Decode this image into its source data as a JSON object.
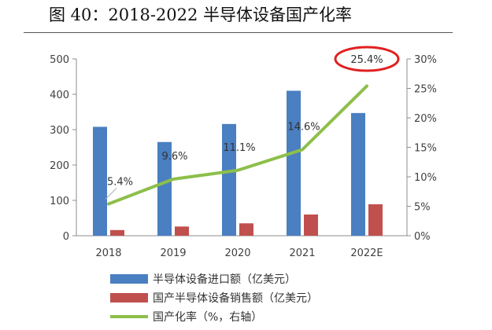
{
  "title": "图 40：2018-2022 半导体设备国产化率",
  "colors": {
    "import_bar": "#4a7fc1",
    "domestic_bar": "#c0504d",
    "rate_line": "#8dbf4a",
    "highlight_circle": "#e02020",
    "axis": "#8c8c8c"
  },
  "chart_data": {
    "type": "bar",
    "categories": [
      "2018",
      "2019",
      "2020",
      "2021",
      "2022E"
    ],
    "series": [
      {
        "name": "半导体设备进口额（亿美元）",
        "type": "bar",
        "axis": "left",
        "values": [
          308,
          265,
          316,
          410,
          347
        ]
      },
      {
        "name": "国产半导体设备销售额（亿美元）",
        "type": "bar",
        "axis": "left",
        "values": [
          16,
          26,
          35,
          60,
          89
        ]
      },
      {
        "name": "国产化率（%，右轴）",
        "type": "line",
        "axis": "right",
        "values": [
          5.4,
          9.6,
          11.1,
          14.6,
          25.4
        ]
      }
    ],
    "data_labels": [
      "5.4%",
      "9.6%",
      "11.1%",
      "14.6%",
      "25.4%"
    ],
    "y_left": {
      "ylim": [
        0,
        500
      ],
      "ticks": [
        "0",
        "100",
        "200",
        "300",
        "400",
        "500"
      ]
    },
    "y_right": {
      "ylim": [
        0,
        30
      ],
      "ticks": [
        "0%",
        "5%",
        "10%",
        "15%",
        "20%",
        "25%",
        "30%"
      ]
    },
    "grid": false,
    "legend_position": "bottom",
    "highlight": "25.4%"
  }
}
